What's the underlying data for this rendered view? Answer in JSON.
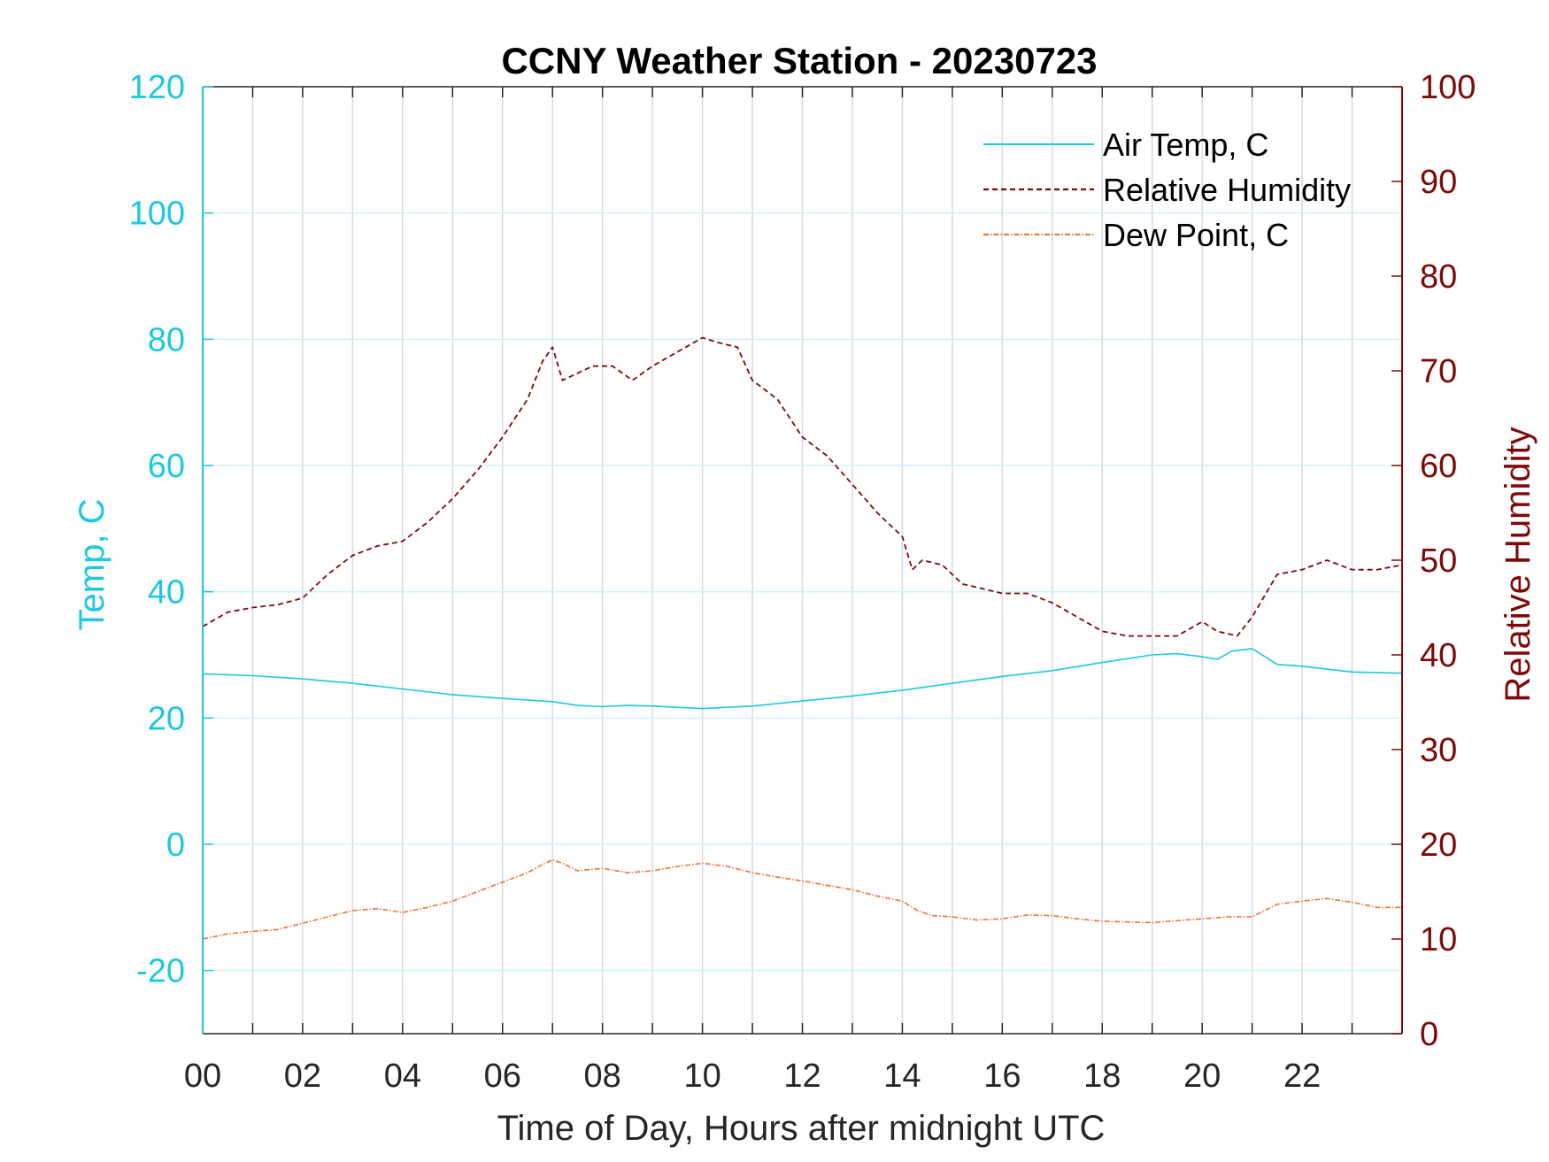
{
  "chart_data": {
    "type": "line",
    "title": "CCNY Weather Station - 20230723",
    "xlabel": "Time of Day, Hours after midnight UTC",
    "ylabel_left": "Temp, C",
    "ylabel_right": "Relative Humidity",
    "xlim": [
      0,
      24
    ],
    "ylim_left": [
      -30,
      120
    ],
    "ylim_right": [
      0,
      100
    ],
    "x_ticks": [
      "00",
      "02",
      "04",
      "06",
      "08",
      "10",
      "12",
      "14",
      "16",
      "18",
      "20",
      "22"
    ],
    "y_ticks_left": [
      "-20",
      "0",
      "20",
      "40",
      "60",
      "80",
      "100",
      "120"
    ],
    "y_ticks_right": [
      "0",
      "10",
      "20",
      "30",
      "40",
      "50",
      "60",
      "70",
      "80",
      "90",
      "100"
    ],
    "grid": true,
    "legend_position": "top-right",
    "colors": {
      "left_axis": "#1ec8dd",
      "right_axis": "#7d0a0a",
      "air_temp": "#1ec8dd",
      "humidity": "#7d0a0a",
      "dew_point": "#e8763a",
      "grid_vertical": "#d4dbe2",
      "grid_horizontal": "#cdf3f8"
    },
    "series": [
      {
        "name": "Air Temp, C",
        "axis": "left",
        "style": "solid",
        "x": [
          0,
          1,
          2,
          3,
          4,
          5,
          6,
          7,
          7.5,
          8,
          8.5,
          9,
          10,
          11,
          12,
          13,
          14,
          15,
          16,
          17,
          18,
          19,
          19.5,
          20,
          20.3,
          20.6,
          21,
          21.5,
          22,
          23,
          24
        ],
        "y": [
          27,
          26.7,
          26.2,
          25.5,
          24.6,
          23.7,
          23.1,
          22.6,
          22,
          21.8,
          22,
          21.9,
          21.5,
          21.9,
          22.7,
          23.5,
          24.4,
          25.5,
          26.6,
          27.5,
          28.8,
          30,
          30.2,
          29.7,
          29.3,
          30.6,
          31,
          28.5,
          28.2,
          27.3,
          27.1
        ]
      },
      {
        "name": "Relative Humidity",
        "axis": "right",
        "style": "dashed",
        "x": [
          0,
          0.5,
          1,
          1.5,
          2,
          2.5,
          3,
          3.5,
          4,
          4.5,
          5,
          5.5,
          6,
          6.5,
          6.8,
          7.0,
          7.2,
          7.4,
          7.8,
          8.2,
          8.6,
          9,
          9.5,
          10,
          10.3,
          10.7,
          11,
          11.5,
          12,
          12.5,
          13,
          13.5,
          14,
          14.2,
          14.4,
          14.8,
          15.2,
          15.6,
          16,
          16.5,
          17,
          17.5,
          18,
          18.5,
          19,
          19.5,
          20,
          20.3,
          20.7,
          21,
          21.5,
          22,
          22.5,
          23,
          23.5,
          24
        ],
        "y": [
          43,
          44.5,
          45,
          45.3,
          46,
          48.5,
          50.5,
          51.5,
          52,
          54,
          56.5,
          59.5,
          63,
          67,
          71,
          72.5,
          69,
          69.5,
          70.5,
          70.5,
          69,
          70.5,
          72,
          73.5,
          73,
          72.5,
          69,
          67,
          63,
          61,
          58,
          55,
          52.5,
          49,
          50,
          49.5,
          47.5,
          47,
          46.5,
          46.5,
          45.5,
          44,
          42.5,
          42,
          42,
          42,
          43.5,
          42.5,
          42,
          44,
          48.5,
          49,
          50,
          49,
          49,
          49.5
        ]
      },
      {
        "name": "Dew Point, C",
        "axis": "left",
        "style": "dashdot",
        "x": [
          0,
          0.5,
          1,
          1.5,
          2,
          2.5,
          3,
          3.5,
          4,
          4.5,
          5,
          5.5,
          6,
          6.5,
          6.8,
          7.0,
          7.2,
          7.5,
          8,
          8.5,
          9,
          9.5,
          10,
          10.5,
          11,
          11.5,
          12,
          12.5,
          13,
          13.5,
          14,
          14.3,
          14.6,
          15,
          15.5,
          16,
          16.5,
          17,
          17.5,
          18,
          18.5,
          19,
          19.5,
          20,
          20.5,
          21,
          21.5,
          22,
          22.5,
          23,
          23.5,
          24
        ],
        "y": [
          -15,
          -14.2,
          -13.8,
          -13.5,
          -12.5,
          -11.5,
          -10.5,
          -10.2,
          -10.8,
          -10,
          -9,
          -7.5,
          -6,
          -4.5,
          -3.2,
          -2.5,
          -3,
          -4.2,
          -3.8,
          -4.5,
          -4.2,
          -3.5,
          -3,
          -3.5,
          -4.5,
          -5.2,
          -5.8,
          -6.5,
          -7.2,
          -8.2,
          -9,
          -10.5,
          -11.3,
          -11.5,
          -12,
          -11.8,
          -11.2,
          -11.3,
          -11.8,
          -12.2,
          -12.3,
          -12.4,
          -12.1,
          -11.8,
          -11.5,
          -11.5,
          -9.5,
          -9,
          -8.6,
          -9.2,
          -10,
          -10
        ]
      }
    ]
  }
}
